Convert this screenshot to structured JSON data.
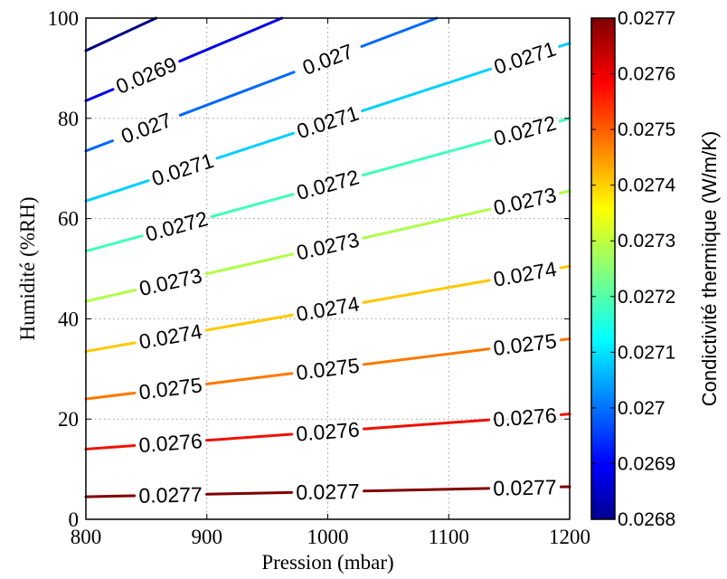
{
  "chart_data": {
    "type": "contour",
    "xlabel": "Pression (mbar)",
    "ylabel": "Humidité (%RH)",
    "xlim": [
      800,
      1200
    ],
    "ylim": [
      0,
      100
    ],
    "x_ticks": [
      "800",
      "900",
      "1000",
      "1100",
      "1200"
    ],
    "y_ticks": [
      "0",
      "20",
      "40",
      "60",
      "80",
      "100"
    ],
    "grid": true,
    "colorbar": {
      "label": "Condictivité thermique (W/m/K)",
      "range": [
        0.0268,
        0.0277
      ],
      "ticks": [
        "0.0268",
        "0.0269",
        "0.027",
        "0.0271",
        "0.0272",
        "0.0273",
        "0.0274",
        "0.0275",
        "0.0276",
        "0.0277"
      ]
    },
    "series": [
      {
        "level": "0.0268",
        "color": "#000080",
        "points": [
          [
            800,
            93.5
          ],
          [
            858,
            100
          ]
        ],
        "labels": []
      },
      {
        "level": "0.0269",
        "color": "#0000e8",
        "points": [
          [
            800,
            83.5
          ],
          [
            962,
            100
          ]
        ],
        "labels": [
          {
            "text": "0.0269",
            "x": 850,
            "y": 88
          }
        ]
      },
      {
        "level": "0.027",
        "color": "#0068ff",
        "points": [
          [
            800,
            73.5
          ],
          [
            1090,
            100
          ]
        ],
        "labels": [
          {
            "text": "0.027",
            "x": 850,
            "y": 77.5
          },
          {
            "text": "0.027",
            "x": 1000,
            "y": 91
          }
        ]
      },
      {
        "level": "0.0271",
        "color": "#00d0ff",
        "points": [
          [
            800,
            63.5
          ],
          [
            1200,
            95
          ]
        ],
        "labels": [
          {
            "text": "0.0271",
            "x": 880,
            "y": 69.5
          },
          {
            "text": "0.0271",
            "x": 1000,
            "y": 80
          },
          {
            "text": "0.0271",
            "x": 1163,
            "y": 92
          }
        ]
      },
      {
        "level": "0.0272",
        "color": "#40ffb8",
        "points": [
          [
            800,
            53.5
          ],
          [
            1200,
            80
          ]
        ],
        "labels": [
          {
            "text": "0.0272",
            "x": 875,
            "y": 58.5
          },
          {
            "text": "0.0272",
            "x": 1000,
            "y": 67.5
          },
          {
            "text": "0.0272",
            "x": 1163,
            "y": 78
          }
        ]
      },
      {
        "level": "0.0273",
        "color": "#b0ff48",
        "points": [
          [
            800,
            43.5
          ],
          [
            1200,
            65.5
          ]
        ],
        "labels": [
          {
            "text": "0.0273",
            "x": 870,
            "y": 47.5
          },
          {
            "text": "0.0273",
            "x": 1000,
            "y": 55
          },
          {
            "text": "0.0273",
            "x": 1163,
            "y": 63.5
          }
        ]
      },
      {
        "level": "0.0274",
        "color": "#ffc800",
        "points": [
          [
            800,
            33.5
          ],
          [
            1200,
            50.5
          ]
        ],
        "labels": [
          {
            "text": "0.0274",
            "x": 870,
            "y": 36
          },
          {
            "text": "0.0274",
            "x": 1000,
            "y": 42
          },
          {
            "text": "0.0274",
            "x": 1163,
            "y": 48.5
          }
        ]
      },
      {
        "level": "0.0275",
        "color": "#ff7800",
        "points": [
          [
            800,
            24
          ],
          [
            1200,
            36
          ]
        ],
        "labels": [
          {
            "text": "0.0275",
            "x": 870,
            "y": 26
          },
          {
            "text": "0.0275",
            "x": 1000,
            "y": 30
          },
          {
            "text": "0.0275",
            "x": 1163,
            "y": 34.5
          }
        ]
      },
      {
        "level": "0.0276",
        "color": "#f01000",
        "points": [
          [
            800,
            14
          ],
          [
            1200,
            21
          ]
        ],
        "labels": [
          {
            "text": "0.0276",
            "x": 870,
            "y": 15.5
          },
          {
            "text": "0.0276",
            "x": 1000,
            "y": 17.5
          },
          {
            "text": "0.0276",
            "x": 1163,
            "y": 20
          }
        ]
      },
      {
        "level": "0.0277",
        "color": "#800000",
        "points": [
          [
            800,
            4.5
          ],
          [
            1200,
            6.5
          ]
        ],
        "labels": [
          {
            "text": "0.0277",
            "x": 870,
            "y": 4.5
          },
          {
            "text": "0.0277",
            "x": 1000,
            "y": 5.3
          },
          {
            "text": "0.0277",
            "x": 1163,
            "y": 6
          }
        ]
      }
    ]
  }
}
